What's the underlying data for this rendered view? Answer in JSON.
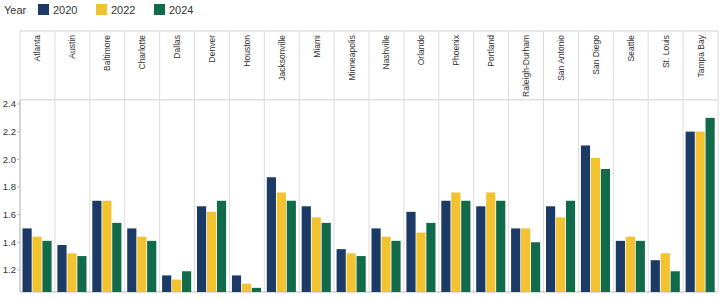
{
  "chart_data": {
    "type": "bar",
    "legend_title": "Year",
    "categories": [
      "Atlanta",
      "Austin",
      "Baltimore",
      "Charlotte",
      "Dallas",
      "Denver",
      "Houston",
      "Jacksonville",
      "Miami",
      "Minneapolis",
      "Nashville",
      "Orlando",
      "Phoenix",
      "Portland",
      "Raleigh-Durham",
      "San Antonio",
      "San Diego",
      "Seattle",
      "St. Louis",
      "Tampa Bay"
    ],
    "series": [
      {
        "name": "2020",
        "color": "#1b3a66",
        "values": [
          1.5,
          1.38,
          1.7,
          1.5,
          1.16,
          1.66,
          1.16,
          1.87,
          1.66,
          1.35,
          1.5,
          1.62,
          1.7,
          1.66,
          1.5,
          1.66,
          2.1,
          1.41,
          1.27,
          2.2
        ]
      },
      {
        "name": "2022",
        "color": "#f2c230",
        "values": [
          1.44,
          1.32,
          1.7,
          1.44,
          1.13,
          1.62,
          1.1,
          1.76,
          1.58,
          1.32,
          1.44,
          1.47,
          1.76,
          1.76,
          1.5,
          1.58,
          2.01,
          1.44,
          1.32,
          2.2
        ]
      },
      {
        "name": "2024",
        "color": "#116b4b",
        "values": [
          1.41,
          1.3,
          1.54,
          1.41,
          1.19,
          1.7,
          1.07,
          1.7,
          1.54,
          1.3,
          1.41,
          1.54,
          1.7,
          1.7,
          1.4,
          1.7,
          1.93,
          1.41,
          1.19,
          2.3
        ]
      }
    ],
    "ylim": [
      1.04,
      2.43
    ],
    "yticks": [
      1.2,
      1.4,
      1.6,
      1.8,
      {
        "value": 2.0,
        "label": "2.0"
      },
      2.2,
      2.4
    ],
    "grid": false,
    "legend": "top-left"
  }
}
